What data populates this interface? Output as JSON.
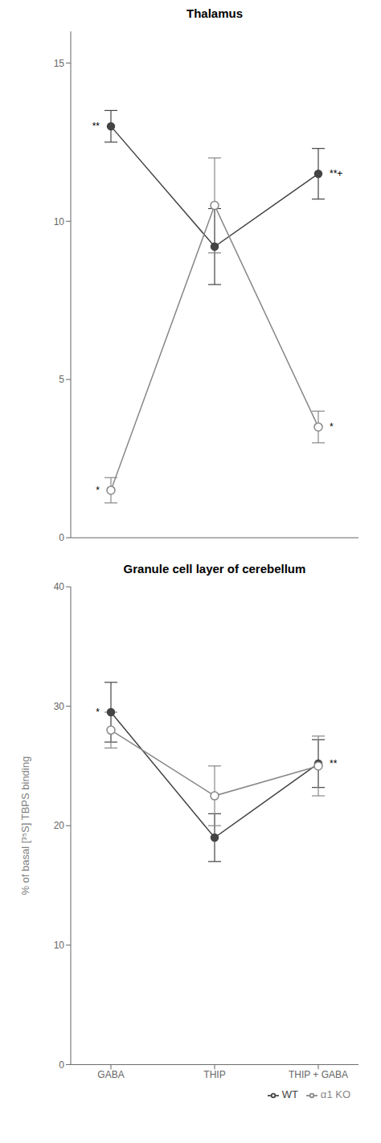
{
  "chart_data": [
    {
      "type": "line",
      "title": "Thalamus",
      "categories": [
        "GABA",
        "THIP",
        "THIP + GABA"
      ],
      "series": [
        {
          "name": "WT",
          "color": "#444444",
          "marker": "circle",
          "values": [
            13.0,
            9.2,
            11.5
          ],
          "errors": [
            0.5,
            1.2,
            0.8
          ]
        },
        {
          "name": "α1 KO",
          "color": "#888888",
          "marker": "open_circle",
          "values": [
            1.5,
            10.5,
            3.5
          ],
          "errors": [
            0.4,
            1.5,
            0.5
          ]
        }
      ],
      "ylim": [
        0,
        16
      ],
      "yticks": [
        0,
        5,
        10,
        15
      ],
      "grid": false,
      "tick_labels": "y",
      "annotations": [
        {
          "text": "**",
          "series": "WT",
          "category": "GABA",
          "side": "left"
        },
        {
          "text": "*",
          "series": "α1 KO",
          "category": "GABA",
          "side": "left"
        },
        {
          "text": "**+",
          "series": "WT",
          "category": "THIP + GABA",
          "side": "right"
        },
        {
          "text": "*",
          "series": "α1 KO",
          "category": "THIP + GABA",
          "side": "right"
        }
      ]
    },
    {
      "type": "line",
      "title": "Granule cell layer of cerebellum",
      "ylabel": "% of basal [³⁵S] TBPS binding",
      "categories": [
        "GABA",
        "THIP",
        "THIP + GABA"
      ],
      "series": [
        {
          "name": "WT",
          "color": "#444444",
          "marker": "circle",
          "values": [
            29.5,
            19.0,
            25.2
          ],
          "errors": [
            2.5,
            2.0,
            2.0
          ]
        },
        {
          "name": "α1 KO",
          "color": "#888888",
          "marker": "open_circle",
          "values": [
            28.0,
            22.5,
            25.0
          ],
          "errors": [
            1.5,
            2.5,
            2.5
          ]
        }
      ],
      "ylim": [
        0,
        40
      ],
      "yticks": [
        0,
        10,
        20,
        30,
        40
      ],
      "grid": false,
      "legend": "lower right",
      "annotations": [
        {
          "text": "*",
          "series": "WT",
          "category": "GABA",
          "side": "left"
        },
        {
          "text": "**",
          "series": "WT",
          "category": "THIP + GABA",
          "side": "right"
        }
      ]
    }
  ]
}
